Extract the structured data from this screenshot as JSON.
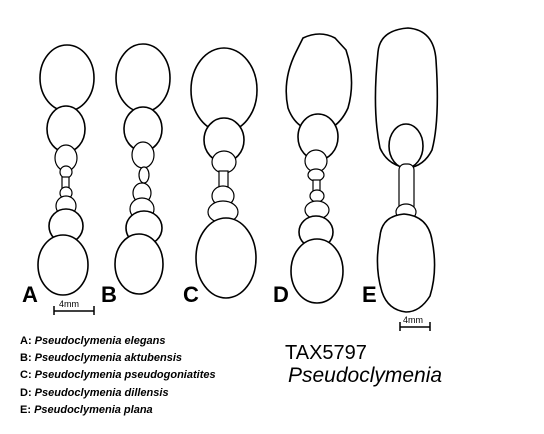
{
  "panels": [
    {
      "id": "A",
      "label": "A",
      "species_code": "A"
    },
    {
      "id": "B",
      "label": "B",
      "species_code": "B"
    },
    {
      "id": "C",
      "label": "C",
      "species_code": "C"
    },
    {
      "id": "D",
      "label": "D",
      "species_code": "D"
    },
    {
      "id": "E",
      "label": "E",
      "species_code": "E"
    }
  ],
  "scale_bars": [
    {
      "label": "4mm"
    },
    {
      "label": "4mm"
    }
  ],
  "legend": [
    {
      "code": "A:",
      "name": "Pseudoclymenia elegans"
    },
    {
      "code": "B:",
      "name": "Pseudoclymenia aktubensis"
    },
    {
      "code": "C:",
      "name": "Pseudoclymenia pseudogoniatites"
    },
    {
      "code": "D:",
      "name": "Pseudoclymenia dillensis"
    },
    {
      "code": "E:",
      "name": "Pseudoclymenia plana"
    }
  ],
  "taxon": {
    "id": "TAX5797",
    "genus": "Pseudoclymenia"
  },
  "colors": {
    "line": "#000000",
    "background": "#ffffff"
  }
}
